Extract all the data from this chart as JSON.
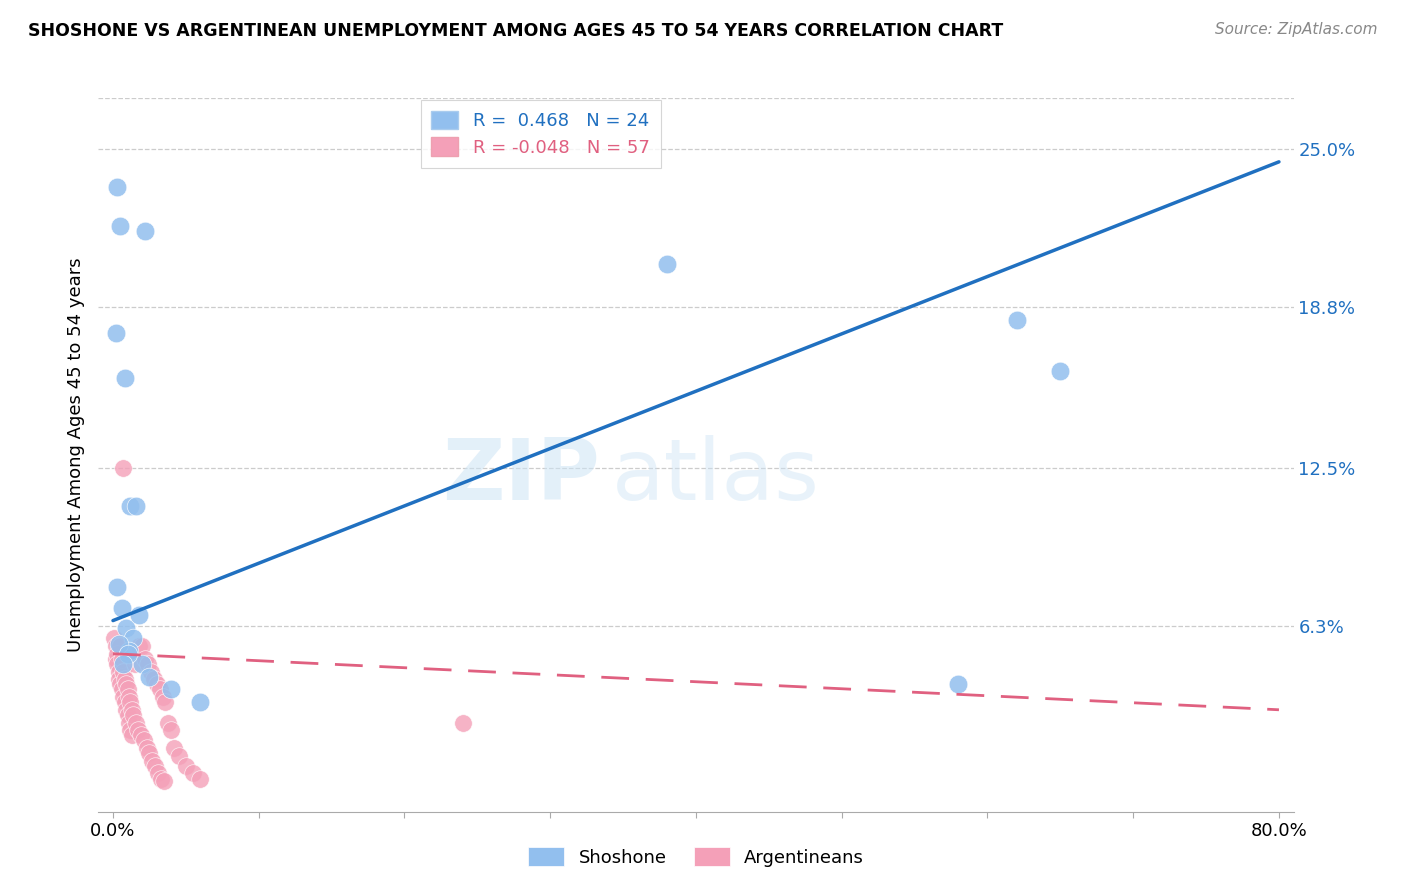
{
  "title": "SHOSHONE VS ARGENTINEAN UNEMPLOYMENT AMONG AGES 45 TO 54 YEARS CORRELATION CHART",
  "source": "Source: ZipAtlas.com",
  "ylabel": "Unemployment Among Ages 45 to 54 years",
  "xlim": [
    0.0,
    0.8
  ],
  "ylim": [
    0.0,
    0.27
  ],
  "yticks": [
    0.063,
    0.125,
    0.188,
    0.25
  ],
  "ytick_labels": [
    "6.3%",
    "12.5%",
    "18.8%",
    "25.0%"
  ],
  "xticks": [
    0.0,
    0.1,
    0.2,
    0.3,
    0.4,
    0.5,
    0.6,
    0.7,
    0.8
  ],
  "xtick_labels": [
    "0.0%",
    "",
    "",
    "",
    "",
    "",
    "",
    "",
    "80.0%"
  ],
  "shoshone_color": "#92bfee",
  "argentinean_color": "#f4a0b8",
  "shoshone_line_color": "#2070c0",
  "argentinean_line_color": "#e06080",
  "legend_shoshone": "R =  0.468   N = 24",
  "legend_argentinean": "R = -0.048   N = 57",
  "watermark_zip": "ZIP",
  "watermark_atlas": "atlas",
  "shoshone_x": [
    0.003,
    0.005,
    0.022,
    0.002,
    0.008,
    0.012,
    0.016,
    0.38,
    0.62,
    0.65,
    0.58,
    0.003,
    0.006,
    0.009,
    0.014,
    0.011,
    0.02,
    0.004,
    0.025,
    0.04,
    0.06,
    0.01,
    0.007,
    0.018
  ],
  "shoshone_y": [
    0.235,
    0.22,
    0.218,
    0.178,
    0.16,
    0.11,
    0.11,
    0.205,
    0.183,
    0.163,
    0.04,
    0.078,
    0.07,
    0.062,
    0.058,
    0.053,
    0.048,
    0.056,
    0.043,
    0.038,
    0.033,
    0.052,
    0.048,
    0.067
  ],
  "argentinean_x": [
    0.001,
    0.002,
    0.002,
    0.003,
    0.003,
    0.004,
    0.004,
    0.005,
    0.005,
    0.006,
    0.006,
    0.007,
    0.007,
    0.008,
    0.008,
    0.009,
    0.009,
    0.01,
    0.01,
    0.011,
    0.011,
    0.012,
    0.012,
    0.013,
    0.013,
    0.014,
    0.015,
    0.016,
    0.017,
    0.018,
    0.019,
    0.02,
    0.021,
    0.022,
    0.023,
    0.024,
    0.025,
    0.026,
    0.027,
    0.028,
    0.029,
    0.03,
    0.031,
    0.032,
    0.033,
    0.034,
    0.035,
    0.036,
    0.038,
    0.04,
    0.042,
    0.045,
    0.05,
    0.055,
    0.06,
    0.24,
    0.007
  ],
  "argentinean_y": [
    0.058,
    0.055,
    0.05,
    0.052,
    0.048,
    0.045,
    0.042,
    0.055,
    0.04,
    0.05,
    0.038,
    0.045,
    0.035,
    0.042,
    0.033,
    0.04,
    0.03,
    0.038,
    0.028,
    0.035,
    0.025,
    0.033,
    0.022,
    0.03,
    0.02,
    0.028,
    0.048,
    0.025,
    0.022,
    0.055,
    0.02,
    0.055,
    0.018,
    0.05,
    0.015,
    0.048,
    0.013,
    0.045,
    0.01,
    0.042,
    0.008,
    0.04,
    0.005,
    0.038,
    0.003,
    0.035,
    0.002,
    0.033,
    0.025,
    0.022,
    0.015,
    0.012,
    0.008,
    0.005,
    0.003,
    0.025,
    0.125
  ],
  "shoshone_trendline": [
    0.065,
    0.245
  ],
  "argentinean_trendline": [
    0.052,
    0.03
  ]
}
